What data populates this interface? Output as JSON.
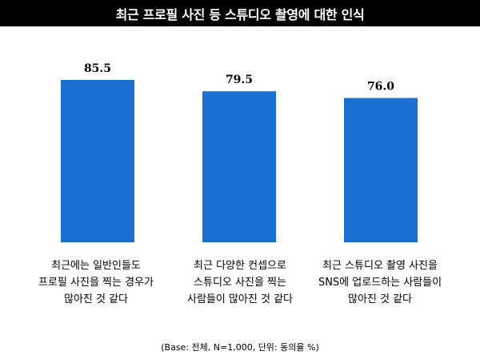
{
  "title": "최근 프로필 사진 등 스튜디오 촬영에 대한 인식",
  "footnote": "(Base: 전체, N=1,000, 단위: 동의율 %)",
  "colors": {
    "bar": "#1a6fd0",
    "title_bg": "#000000",
    "title_fg": "#ffffff"
  },
  "chart_data": {
    "type": "bar",
    "title": "최근 프로필 사진 등 스튜디오 촬영에 대한 인식",
    "categories": [
      "최근에는 일반인들도\n프로필 사진을 찍는 경우가\n많아진 것 같다",
      "최근 다양한 컨셉으로\n스튜디오 사진을 찍는\n사람들이 많아진 것 같다",
      "최근 스튜디오 촬영 사진을\nSNS에 업로드하는 사람들이\n많아진 것 같다"
    ],
    "values": [
      85.5,
      79.5,
      76.0
    ],
    "value_labels": [
      "85.5",
      "79.5",
      "76.0"
    ],
    "unit": "동의율 %",
    "ylim": [
      0,
      100
    ],
    "grid": false,
    "legend": "none"
  }
}
